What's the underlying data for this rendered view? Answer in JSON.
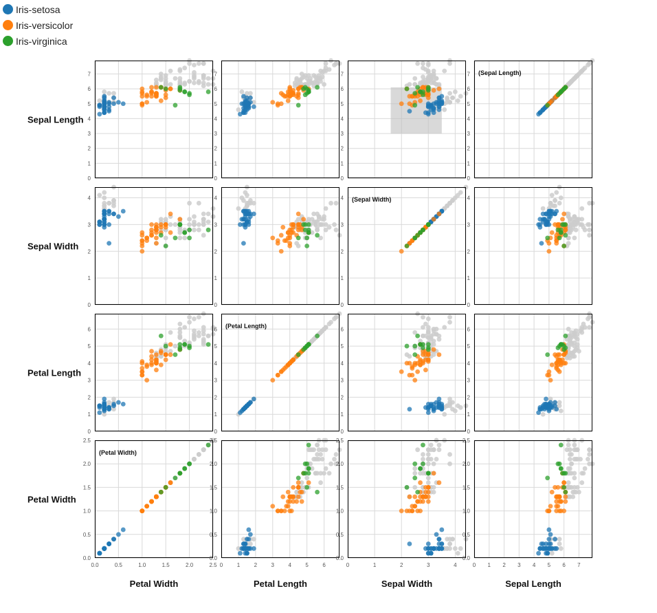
{
  "legend": {
    "items": [
      {
        "label": "Iris-setosa",
        "color": "#1f77b4"
      },
      {
        "label": "Iris-versicolor",
        "color": "#ff7f0e"
      },
      {
        "label": "Iris-virginica",
        "color": "#2ca02c"
      }
    ]
  },
  "chart_data": {
    "type": "scatter",
    "layout": "scatterplot-matrix",
    "row_variables": [
      "Sepal Length",
      "Sepal Width",
      "Petal Length",
      "Petal Width"
    ],
    "column_variables": [
      "Petal Width",
      "Petal Length",
      "Sepal Width",
      "Sepal Length"
    ],
    "diagonal_labels": [
      "(Sepal Length)",
      "(Sepal Width)",
      "(Petal Length)",
      "(Petal Width)"
    ],
    "axes": {
      "Sepal Length": {
        "domain": [
          0,
          7.9
        ],
        "ticks": [
          0,
          1,
          2,
          3,
          4,
          5,
          6,
          7
        ]
      },
      "Sepal Width": {
        "domain": [
          0,
          4.4
        ],
        "ticks": [
          0,
          1,
          2,
          3,
          4
        ]
      },
      "Petal Length": {
        "domain": [
          0,
          6.9
        ],
        "ticks": [
          0,
          1,
          2,
          3,
          4,
          5,
          6
        ]
      },
      "Petal Width": {
        "domain": [
          0,
          2.5
        ],
        "ticks": [
          0,
          0.5,
          1.0,
          1.5,
          2.0,
          2.5
        ],
        "tick_labels": [
          "0.0",
          "0.5",
          "1.0",
          "1.5",
          "2.0",
          "2.5"
        ]
      }
    },
    "grid": true,
    "brush": {
      "panel": "Sepal Length vs Sepal Width",
      "x_range": [
        1.6,
        3.5
      ],
      "y_range": [
        3.0,
        6.1
      ]
    },
    "unselected_color": "#cccccc",
    "species": [
      "Iris-setosa",
      "Iris-versicolor",
      "Iris-virginica"
    ],
    "fields": [
      "Sepal Length",
      "Sepal Width",
      "Petal Length",
      "Petal Width",
      "species_index"
    ],
    "points": [
      [
        5.1,
        3.5,
        1.4,
        0.2,
        0
      ],
      [
        4.9,
        3.0,
        1.4,
        0.2,
        0
      ],
      [
        4.7,
        3.2,
        1.3,
        0.2,
        0
      ],
      [
        4.6,
        3.1,
        1.5,
        0.2,
        0
      ],
      [
        5.0,
        3.6,
        1.4,
        0.2,
        0
      ],
      [
        5.4,
        3.9,
        1.7,
        0.4,
        0
      ],
      [
        4.6,
        3.4,
        1.4,
        0.3,
        0
      ],
      [
        5.0,
        3.4,
        1.5,
        0.2,
        0
      ],
      [
        4.4,
        2.9,
        1.4,
        0.2,
        0
      ],
      [
        4.9,
        3.1,
        1.5,
        0.1,
        0
      ],
      [
        5.4,
        3.7,
        1.5,
        0.2,
        0
      ],
      [
        4.8,
        3.4,
        1.6,
        0.2,
        0
      ],
      [
        4.8,
        3.0,
        1.4,
        0.1,
        0
      ],
      [
        4.3,
        3.0,
        1.1,
        0.1,
        0
      ],
      [
        5.8,
        4.0,
        1.2,
        0.2,
        0
      ],
      [
        5.7,
        4.4,
        1.5,
        0.4,
        0
      ],
      [
        5.4,
        3.9,
        1.3,
        0.4,
        0
      ],
      [
        5.1,
        3.5,
        1.4,
        0.3,
        0
      ],
      [
        5.7,
        3.8,
        1.7,
        0.3,
        0
      ],
      [
        5.1,
        3.8,
        1.5,
        0.3,
        0
      ],
      [
        5.4,
        3.4,
        1.7,
        0.2,
        0
      ],
      [
        5.1,
        3.7,
        1.5,
        0.4,
        0
      ],
      [
        4.6,
        3.6,
        1.0,
        0.2,
        0
      ],
      [
        5.1,
        3.3,
        1.7,
        0.5,
        0
      ],
      [
        4.8,
        3.4,
        1.9,
        0.2,
        0
      ],
      [
        5.0,
        3.0,
        1.6,
        0.2,
        0
      ],
      [
        5.0,
        3.4,
        1.6,
        0.4,
        0
      ],
      [
        5.2,
        3.5,
        1.5,
        0.2,
        0
      ],
      [
        5.2,
        3.4,
        1.4,
        0.2,
        0
      ],
      [
        4.7,
        3.2,
        1.6,
        0.2,
        0
      ],
      [
        4.8,
        3.1,
        1.6,
        0.2,
        0
      ],
      [
        5.4,
        3.4,
        1.5,
        0.4,
        0
      ],
      [
        5.2,
        4.1,
        1.5,
        0.1,
        0
      ],
      [
        5.5,
        4.2,
        1.4,
        0.2,
        0
      ],
      [
        4.9,
        3.1,
        1.5,
        0.1,
        0
      ],
      [
        5.0,
        3.2,
        1.2,
        0.2,
        0
      ],
      [
        5.5,
        3.5,
        1.3,
        0.2,
        0
      ],
      [
        4.9,
        3.1,
        1.5,
        0.1,
        0
      ],
      [
        4.4,
        3.0,
        1.3,
        0.2,
        0
      ],
      [
        5.1,
        3.4,
        1.5,
        0.2,
        0
      ],
      [
        5.0,
        3.5,
        1.3,
        0.3,
        0
      ],
      [
        4.5,
        2.3,
        1.3,
        0.3,
        0
      ],
      [
        4.4,
        3.2,
        1.3,
        0.2,
        0
      ],
      [
        5.0,
        3.5,
        1.6,
        0.6,
        0
      ],
      [
        5.1,
        3.8,
        1.9,
        0.4,
        0
      ],
      [
        4.8,
        3.0,
        1.4,
        0.3,
        0
      ],
      [
        5.1,
        3.8,
        1.6,
        0.2,
        0
      ],
      [
        4.6,
        3.2,
        1.4,
        0.2,
        0
      ],
      [
        5.3,
        3.7,
        1.5,
        0.2,
        0
      ],
      [
        5.0,
        3.3,
        1.4,
        0.2,
        0
      ],
      [
        7.0,
        3.2,
        4.7,
        1.4,
        1
      ],
      [
        6.4,
        3.2,
        4.5,
        1.5,
        1
      ],
      [
        6.9,
        3.1,
        4.9,
        1.5,
        1
      ],
      [
        5.5,
        2.3,
        4.0,
        1.3,
        1
      ],
      [
        6.5,
        2.8,
        4.6,
        1.5,
        1
      ],
      [
        5.7,
        2.8,
        4.5,
        1.3,
        1
      ],
      [
        6.3,
        3.3,
        4.7,
        1.6,
        1
      ],
      [
        4.9,
        2.4,
        3.3,
        1.0,
        1
      ],
      [
        6.6,
        2.9,
        4.6,
        1.3,
        1
      ],
      [
        5.2,
        2.7,
        3.9,
        1.4,
        1
      ],
      [
        5.0,
        2.0,
        3.5,
        1.0,
        1
      ],
      [
        5.9,
        3.0,
        4.2,
        1.5,
        1
      ],
      [
        6.0,
        2.2,
        4.0,
        1.0,
        1
      ],
      [
        6.1,
        2.9,
        4.7,
        1.4,
        1
      ],
      [
        5.6,
        2.9,
        3.6,
        1.3,
        1
      ],
      [
        6.7,
        3.1,
        4.4,
        1.4,
        1
      ],
      [
        5.6,
        3.0,
        4.5,
        1.5,
        1
      ],
      [
        5.8,
        2.7,
        4.1,
        1.0,
        1
      ],
      [
        6.2,
        2.2,
        4.5,
        1.5,
        1
      ],
      [
        5.6,
        2.5,
        3.9,
        1.1,
        1
      ],
      [
        5.9,
        3.2,
        4.8,
        1.8,
        1
      ],
      [
        6.1,
        2.8,
        4.0,
        1.3,
        1
      ],
      [
        6.3,
        2.5,
        4.9,
        1.5,
        1
      ],
      [
        6.1,
        2.8,
        4.7,
        1.2,
        1
      ],
      [
        6.4,
        2.9,
        4.3,
        1.3,
        1
      ],
      [
        6.6,
        3.0,
        4.4,
        1.4,
        1
      ],
      [
        6.8,
        2.8,
        4.8,
        1.4,
        1
      ],
      [
        6.7,
        3.0,
        5.0,
        1.7,
        1
      ],
      [
        6.0,
        2.9,
        4.5,
        1.5,
        1
      ],
      [
        5.7,
        2.6,
        3.5,
        1.0,
        1
      ],
      [
        5.5,
        2.4,
        3.8,
        1.1,
        1
      ],
      [
        5.5,
        2.4,
        3.7,
        1.0,
        1
      ],
      [
        5.8,
        2.7,
        3.9,
        1.2,
        1
      ],
      [
        6.0,
        2.7,
        5.1,
        1.6,
        1
      ],
      [
        5.4,
        3.0,
        4.5,
        1.5,
        1
      ],
      [
        6.0,
        3.4,
        4.5,
        1.6,
        1
      ],
      [
        6.7,
        3.1,
        4.7,
        1.5,
        1
      ],
      [
        6.3,
        2.3,
        4.4,
        1.3,
        1
      ],
      [
        5.6,
        3.0,
        4.1,
        1.3,
        1
      ],
      [
        5.5,
        2.5,
        4.0,
        1.3,
        1
      ],
      [
        5.5,
        2.6,
        4.4,
        1.2,
        1
      ],
      [
        6.1,
        3.0,
        4.6,
        1.4,
        1
      ],
      [
        5.8,
        2.6,
        4.0,
        1.2,
        1
      ],
      [
        5.0,
        2.3,
        3.3,
        1.0,
        1
      ],
      [
        5.6,
        2.7,
        4.2,
        1.3,
        1
      ],
      [
        5.7,
        3.0,
        4.2,
        1.2,
        1
      ],
      [
        5.7,
        2.9,
        4.2,
        1.3,
        1
      ],
      [
        6.2,
        2.9,
        4.3,
        1.3,
        1
      ],
      [
        5.1,
        2.5,
        3.0,
        1.1,
        1
      ],
      [
        5.7,
        2.8,
        4.1,
        1.3,
        1
      ],
      [
        6.3,
        3.3,
        6.0,
        2.5,
        2
      ],
      [
        5.8,
        2.7,
        5.1,
        1.9,
        2
      ],
      [
        7.1,
        3.0,
        5.9,
        2.1,
        2
      ],
      [
        6.3,
        2.9,
        5.6,
        1.8,
        2
      ],
      [
        6.5,
        3.0,
        5.8,
        2.2,
        2
      ],
      [
        7.6,
        3.0,
        6.6,
        2.1,
        2
      ],
      [
        4.9,
        2.5,
        4.5,
        1.7,
        2
      ],
      [
        7.3,
        2.9,
        6.3,
        1.8,
        2
      ],
      [
        6.7,
        2.5,
        5.8,
        1.8,
        2
      ],
      [
        7.2,
        3.6,
        6.1,
        2.5,
        2
      ],
      [
        6.5,
        3.2,
        5.1,
        2.0,
        2
      ],
      [
        6.4,
        2.7,
        5.3,
        1.9,
        2
      ],
      [
        6.8,
        3.0,
        5.5,
        2.1,
        2
      ],
      [
        5.7,
        2.5,
        5.0,
        2.0,
        2
      ],
      [
        5.8,
        2.8,
        5.1,
        2.4,
        2
      ],
      [
        6.4,
        3.2,
        5.3,
        2.3,
        2
      ],
      [
        6.5,
        3.0,
        5.5,
        1.8,
        2
      ],
      [
        7.7,
        3.8,
        6.7,
        2.2,
        2
      ],
      [
        7.7,
        2.6,
        6.9,
        2.3,
        2
      ],
      [
        6.0,
        2.2,
        5.0,
        1.5,
        2
      ],
      [
        6.9,
        3.2,
        5.7,
        2.3,
        2
      ],
      [
        5.6,
        2.8,
        4.9,
        2.0,
        2
      ],
      [
        7.7,
        2.8,
        6.7,
        2.0,
        2
      ],
      [
        6.3,
        2.7,
        4.9,
        1.8,
        2
      ],
      [
        6.7,
        3.3,
        5.7,
        2.1,
        2
      ],
      [
        7.2,
        3.2,
        6.0,
        1.8,
        2
      ],
      [
        6.2,
        2.8,
        4.8,
        1.8,
        2
      ],
      [
        6.1,
        3.0,
        4.9,
        1.8,
        2
      ],
      [
        6.4,
        2.8,
        5.6,
        2.1,
        2
      ],
      [
        7.2,
        3.0,
        5.8,
        1.6,
        2
      ],
      [
        7.4,
        2.8,
        6.1,
        1.9,
        2
      ],
      [
        7.9,
        3.8,
        6.4,
        2.0,
        2
      ],
      [
        6.4,
        2.8,
        5.6,
        2.2,
        2
      ],
      [
        6.3,
        2.8,
        5.1,
        1.5,
        2
      ],
      [
        6.1,
        2.6,
        5.6,
        1.4,
        2
      ],
      [
        7.7,
        3.0,
        6.1,
        2.3,
        2
      ],
      [
        6.3,
        3.4,
        5.6,
        2.4,
        2
      ],
      [
        6.4,
        3.1,
        5.5,
        1.8,
        2
      ],
      [
        6.0,
        3.0,
        4.8,
        1.8,
        2
      ],
      [
        6.9,
        3.1,
        5.4,
        2.1,
        2
      ],
      [
        6.7,
        3.1,
        5.6,
        2.4,
        2
      ],
      [
        6.9,
        3.1,
        5.1,
        2.3,
        2
      ],
      [
        5.8,
        2.7,
        5.1,
        1.9,
        2
      ],
      [
        6.8,
        3.2,
        5.9,
        2.3,
        2
      ],
      [
        6.7,
        3.3,
        5.7,
        2.5,
        2
      ],
      [
        6.7,
        3.0,
        5.2,
        2.3,
        2
      ],
      [
        6.3,
        2.5,
        5.0,
        1.9,
        2
      ],
      [
        6.5,
        3.0,
        5.2,
        2.0,
        2
      ],
      [
        6.2,
        3.4,
        5.4,
        2.3,
        2
      ],
      [
        5.9,
        3.0,
        5.1,
        1.8,
        2
      ]
    ]
  }
}
